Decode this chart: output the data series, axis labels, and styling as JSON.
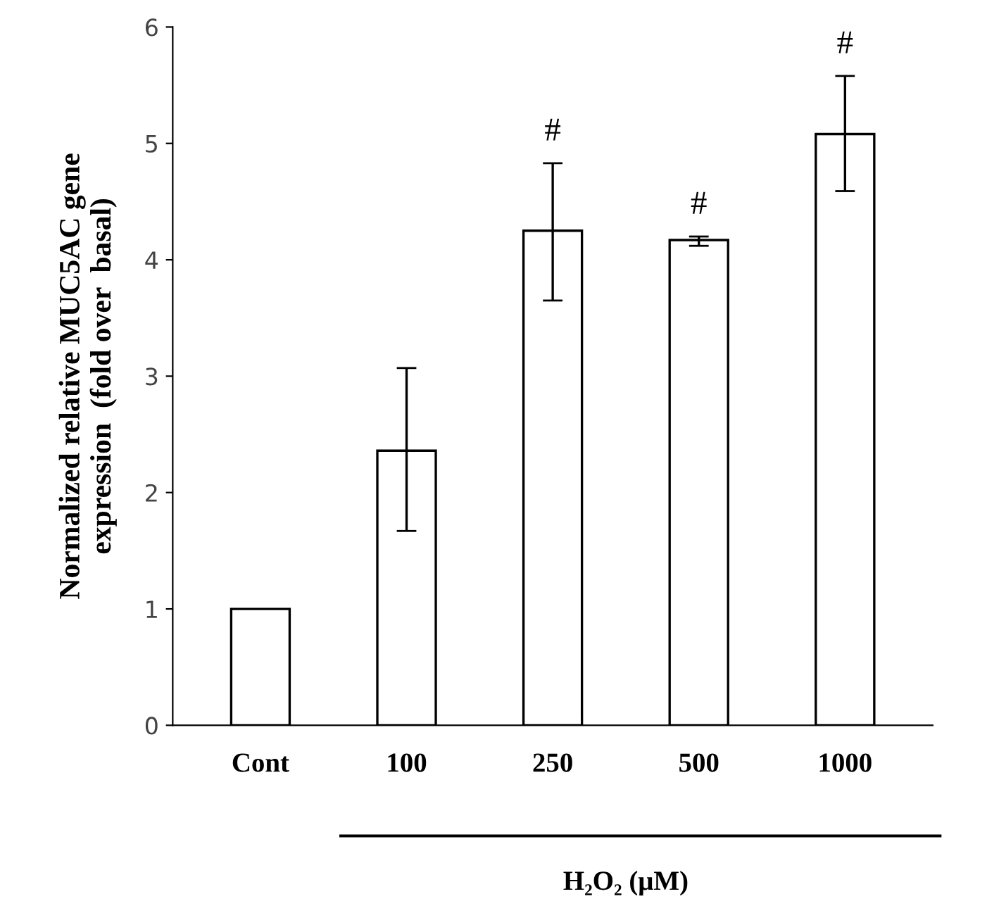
{
  "chart_data": {
    "type": "bar",
    "ylabel": "Normalized relative MUC5AC gene\nexpression  (fold over  basal)",
    "xlabel": "H₂O₂ (μM)",
    "categories": [
      "Cont",
      "100",
      "250",
      "500",
      "1000"
    ],
    "values": [
      1.0,
      2.36,
      4.25,
      4.17,
      5.08
    ],
    "errors": [
      null,
      [
        1.67,
        3.07
      ],
      [
        3.65,
        4.83
      ],
      [
        4.12,
        4.2
      ],
      [
        4.59,
        5.58
      ]
    ],
    "color": "#ffffff",
    "ylim": [
      0,
      6
    ],
    "yticks": [
      0,
      1,
      2,
      3,
      4,
      5,
      6
    ],
    "grid": false,
    "annotations": [
      {
        "text": "#",
        "x": "250",
        "y": 4.83
      },
      {
        "text": "#",
        "x": "500",
        "y": 4.2
      },
      {
        "text": "#",
        "x": "1000",
        "y": 5.58
      }
    ]
  }
}
